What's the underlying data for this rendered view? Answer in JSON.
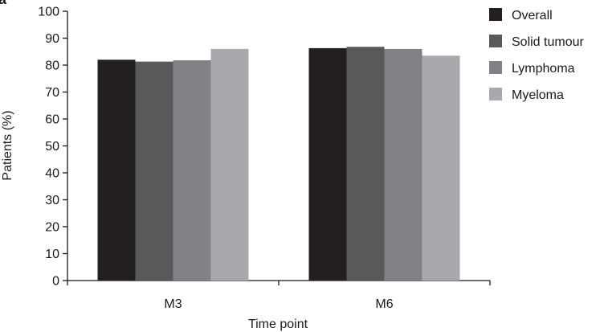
{
  "chart_data": {
    "type": "bar",
    "title": "",
    "panel_label": "a",
    "xlabel": "Time point",
    "ylabel": "Patients (%)",
    "ylim": [
      0,
      100
    ],
    "yticks": [
      0,
      10,
      20,
      30,
      40,
      50,
      60,
      70,
      80,
      90,
      100
    ],
    "categories": [
      "M3",
      "M6"
    ],
    "series": [
      {
        "name": "Overall",
        "color": "#231f20",
        "values": [
          82,
          86.3
        ]
      },
      {
        "name": "Solid tumour",
        "color": "#58595b",
        "values": [
          81.3,
          86.8
        ]
      },
      {
        "name": "Lymphoma",
        "color": "#808285",
        "values": [
          81.8,
          86
        ]
      },
      {
        "name": "Myeloma",
        "color": "#a7a9ac",
        "values": [
          86,
          83.5
        ]
      }
    ],
    "legend_position": "top-right",
    "grid": false
  }
}
